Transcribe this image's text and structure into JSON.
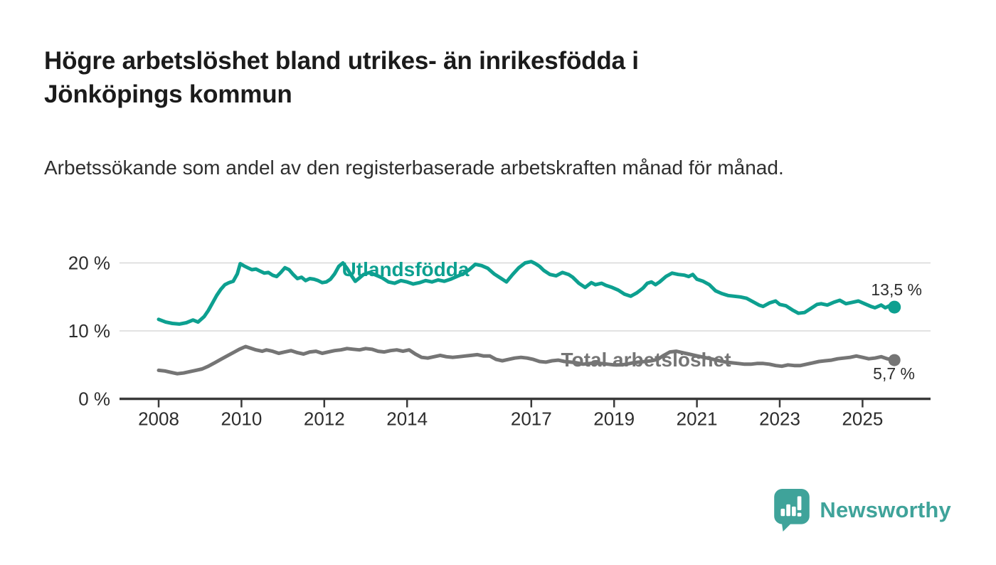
{
  "header": {
    "title": "Högre arbetslöshet bland utrikes- än inrikesfödda i Jönköpings kommun",
    "title_lines": [
      "Högre arbetslöshet bland utrikes- än inrikesfödda i",
      "Jönköpings kommun"
    ],
    "subtitle": "Arbetssökande som andel av den registerbaserade arbetskraften månad för månad."
  },
  "footer": {
    "brand": "Newsworthy",
    "logo_icon": "newsworthy-speech-bubble-bar-chart-icon",
    "brand_color": "#3fa39a"
  },
  "colors": {
    "foreign_born_line": "#0da090",
    "total_line": "#757575",
    "gridline": "#d8d8d8",
    "axis": "#3a3a3a",
    "label_text": "#2d2d2d"
  },
  "chart_data": {
    "type": "line",
    "title": "Högre arbetslöshet bland utrikes- än inrikesfödda i Jönköpings kommun",
    "subtitle": "Arbetssökande som andel av den registerbaserade arbetskraften månad för månad.",
    "xlabel": "",
    "ylabel": "",
    "unit": "%",
    "grid": "horizontal",
    "x_axis": {
      "ticks": [
        2008,
        2010,
        2012,
        2014,
        2017,
        2019,
        2021,
        2023,
        2025
      ]
    },
    "y_axis": {
      "ticks": [
        0,
        10,
        20
      ],
      "tick_labels": [
        "0 %",
        "10 %",
        "20 %"
      ],
      "range": [
        0,
        21
      ]
    },
    "series": [
      {
        "name": "Utlandsfödda",
        "color": "#0da090",
        "end_value": 13.5,
        "end_label": "13,5 %",
        "points": [
          [
            2008.0,
            11.7
          ],
          [
            2008.17,
            11.3
          ],
          [
            2008.33,
            11.1
          ],
          [
            2008.5,
            11.0
          ],
          [
            2008.67,
            11.2
          ],
          [
            2008.83,
            11.6
          ],
          [
            2008.95,
            11.3
          ],
          [
            2009.1,
            12.1
          ],
          [
            2009.2,
            13.0
          ],
          [
            2009.3,
            14.1
          ],
          [
            2009.4,
            15.2
          ],
          [
            2009.5,
            16.1
          ],
          [
            2009.6,
            16.8
          ],
          [
            2009.7,
            17.1
          ],
          [
            2009.8,
            17.3
          ],
          [
            2009.9,
            18.4
          ],
          [
            2009.97,
            19.9
          ],
          [
            2010.05,
            19.6
          ],
          [
            2010.15,
            19.3
          ],
          [
            2010.25,
            19.0
          ],
          [
            2010.35,
            19.1
          ],
          [
            2010.45,
            18.8
          ],
          [
            2010.55,
            18.5
          ],
          [
            2010.65,
            18.6
          ],
          [
            2010.75,
            18.2
          ],
          [
            2010.85,
            18.0
          ],
          [
            2010.95,
            18.6
          ],
          [
            2011.05,
            19.3
          ],
          [
            2011.15,
            19.0
          ],
          [
            2011.25,
            18.3
          ],
          [
            2011.35,
            17.7
          ],
          [
            2011.45,
            17.9
          ],
          [
            2011.55,
            17.4
          ],
          [
            2011.65,
            17.7
          ],
          [
            2011.75,
            17.6
          ],
          [
            2011.85,
            17.4
          ],
          [
            2011.95,
            17.1
          ],
          [
            2012.05,
            17.2
          ],
          [
            2012.15,
            17.6
          ],
          [
            2012.25,
            18.4
          ],
          [
            2012.35,
            19.5
          ],
          [
            2012.45,
            20.0
          ],
          [
            2012.55,
            19.2
          ],
          [
            2012.65,
            18.2
          ],
          [
            2012.75,
            17.3
          ],
          [
            2012.85,
            17.8
          ],
          [
            2012.95,
            18.3
          ],
          [
            2013.1,
            18.6
          ],
          [
            2013.25,
            18.2
          ],
          [
            2013.4,
            17.8
          ],
          [
            2013.55,
            17.2
          ],
          [
            2013.7,
            17.0
          ],
          [
            2013.85,
            17.4
          ],
          [
            2014.0,
            17.2
          ],
          [
            2014.15,
            16.9
          ],
          [
            2014.3,
            17.1
          ],
          [
            2014.45,
            17.4
          ],
          [
            2014.6,
            17.2
          ],
          [
            2014.75,
            17.5
          ],
          [
            2014.9,
            17.3
          ],
          [
            2015.05,
            17.6
          ],
          [
            2015.2,
            18.0
          ],
          [
            2015.35,
            18.4
          ],
          [
            2015.5,
            19.0
          ],
          [
            2015.65,
            19.8
          ],
          [
            2015.8,
            19.6
          ],
          [
            2015.95,
            19.2
          ],
          [
            2016.1,
            18.4
          ],
          [
            2016.25,
            17.8
          ],
          [
            2016.4,
            17.2
          ],
          [
            2016.55,
            18.3
          ],
          [
            2016.7,
            19.3
          ],
          [
            2016.85,
            20.0
          ],
          [
            2017.0,
            20.2
          ],
          [
            2017.1,
            19.9
          ],
          [
            2017.2,
            19.5
          ],
          [
            2017.3,
            18.9
          ],
          [
            2017.45,
            18.3
          ],
          [
            2017.6,
            18.1
          ],
          [
            2017.75,
            18.6
          ],
          [
            2017.9,
            18.3
          ],
          [
            2018.0,
            17.9
          ],
          [
            2018.15,
            17.0
          ],
          [
            2018.3,
            16.4
          ],
          [
            2018.45,
            17.1
          ],
          [
            2018.55,
            16.8
          ],
          [
            2018.7,
            17.0
          ],
          [
            2018.8,
            16.7
          ],
          [
            2018.95,
            16.4
          ],
          [
            2019.1,
            16.0
          ],
          [
            2019.25,
            15.4
          ],
          [
            2019.4,
            15.1
          ],
          [
            2019.55,
            15.6
          ],
          [
            2019.7,
            16.3
          ],
          [
            2019.8,
            17.0
          ],
          [
            2019.9,
            17.2
          ],
          [
            2020.0,
            16.8
          ],
          [
            2020.1,
            17.2
          ],
          [
            2020.25,
            18.0
          ],
          [
            2020.4,
            18.5
          ],
          [
            2020.55,
            18.3
          ],
          [
            2020.7,
            18.2
          ],
          [
            2020.8,
            18.0
          ],
          [
            2020.9,
            18.3
          ],
          [
            2021.0,
            17.6
          ],
          [
            2021.15,
            17.3
          ],
          [
            2021.3,
            16.8
          ],
          [
            2021.45,
            15.9
          ],
          [
            2021.6,
            15.5
          ],
          [
            2021.75,
            15.2
          ],
          [
            2021.9,
            15.1
          ],
          [
            2022.05,
            15.0
          ],
          [
            2022.2,
            14.8
          ],
          [
            2022.35,
            14.3
          ],
          [
            2022.5,
            13.8
          ],
          [
            2022.6,
            13.6
          ],
          [
            2022.75,
            14.1
          ],
          [
            2022.9,
            14.4
          ],
          [
            2023.0,
            13.9
          ],
          [
            2023.15,
            13.7
          ],
          [
            2023.3,
            13.1
          ],
          [
            2023.45,
            12.6
          ],
          [
            2023.6,
            12.7
          ],
          [
            2023.75,
            13.3
          ],
          [
            2023.9,
            13.9
          ],
          [
            2024.0,
            14.0
          ],
          [
            2024.15,
            13.8
          ],
          [
            2024.3,
            14.2
          ],
          [
            2024.45,
            14.5
          ],
          [
            2024.6,
            14.0
          ],
          [
            2024.75,
            14.2
          ],
          [
            2024.9,
            14.4
          ],
          [
            2025.05,
            14.0
          ],
          [
            2025.2,
            13.6
          ],
          [
            2025.3,
            13.4
          ],
          [
            2025.45,
            13.8
          ],
          [
            2025.55,
            13.4
          ],
          [
            2025.65,
            13.7
          ],
          [
            2025.77,
            13.5
          ]
        ]
      },
      {
        "name": "Total arbetslöshet",
        "color": "#757575",
        "end_value": 5.7,
        "end_label": "5,7 %",
        "points": [
          [
            2008.0,
            4.2
          ],
          [
            2008.15,
            4.1
          ],
          [
            2008.3,
            3.9
          ],
          [
            2008.45,
            3.7
          ],
          [
            2008.6,
            3.8
          ],
          [
            2008.75,
            4.0
          ],
          [
            2008.9,
            4.2
          ],
          [
            2009.05,
            4.4
          ],
          [
            2009.2,
            4.8
          ],
          [
            2009.35,
            5.3
          ],
          [
            2009.5,
            5.8
          ],
          [
            2009.65,
            6.3
          ],
          [
            2009.8,
            6.8
          ],
          [
            2009.95,
            7.3
          ],
          [
            2010.1,
            7.7
          ],
          [
            2010.2,
            7.5
          ],
          [
            2010.35,
            7.2
          ],
          [
            2010.5,
            7.0
          ],
          [
            2010.6,
            7.2
          ],
          [
            2010.75,
            7.0
          ],
          [
            2010.9,
            6.7
          ],
          [
            2011.05,
            6.9
          ],
          [
            2011.2,
            7.1
          ],
          [
            2011.35,
            6.8
          ],
          [
            2011.5,
            6.6
          ],
          [
            2011.65,
            6.9
          ],
          [
            2011.8,
            7.0
          ],
          [
            2011.95,
            6.7
          ],
          [
            2012.1,
            6.9
          ],
          [
            2012.25,
            7.1
          ],
          [
            2012.4,
            7.2
          ],
          [
            2012.55,
            7.4
          ],
          [
            2012.7,
            7.3
          ],
          [
            2012.85,
            7.2
          ],
          [
            2013.0,
            7.4
          ],
          [
            2013.15,
            7.3
          ],
          [
            2013.3,
            7.0
          ],
          [
            2013.45,
            6.9
          ],
          [
            2013.6,
            7.1
          ],
          [
            2013.75,
            7.2
          ],
          [
            2013.9,
            7.0
          ],
          [
            2014.05,
            7.2
          ],
          [
            2014.2,
            6.6
          ],
          [
            2014.35,
            6.1
          ],
          [
            2014.5,
            6.0
          ],
          [
            2014.65,
            6.2
          ],
          [
            2014.8,
            6.4
          ],
          [
            2014.95,
            6.2
          ],
          [
            2015.1,
            6.1
          ],
          [
            2015.25,
            6.2
          ],
          [
            2015.4,
            6.3
          ],
          [
            2015.55,
            6.4
          ],
          [
            2015.7,
            6.5
          ],
          [
            2015.85,
            6.3
          ],
          [
            2016.0,
            6.3
          ],
          [
            2016.15,
            5.8
          ],
          [
            2016.3,
            5.6
          ],
          [
            2016.45,
            5.8
          ],
          [
            2016.6,
            6.0
          ],
          [
            2016.75,
            6.1
          ],
          [
            2016.9,
            6.0
          ],
          [
            2017.05,
            5.8
          ],
          [
            2017.2,
            5.5
          ],
          [
            2017.35,
            5.4
          ],
          [
            2017.5,
            5.6
          ],
          [
            2017.65,
            5.7
          ],
          [
            2017.8,
            5.5
          ],
          [
            2017.95,
            5.4
          ],
          [
            2018.1,
            5.3
          ],
          [
            2018.25,
            5.1
          ],
          [
            2018.4,
            5.2
          ],
          [
            2018.55,
            5.3
          ],
          [
            2018.7,
            5.2
          ],
          [
            2018.85,
            5.1
          ],
          [
            2019.0,
            5.0
          ],
          [
            2019.15,
            5.0
          ],
          [
            2019.3,
            5.1
          ],
          [
            2019.45,
            5.3
          ],
          [
            2019.6,
            5.4
          ],
          [
            2019.75,
            5.5
          ],
          [
            2019.9,
            5.6
          ],
          [
            2020.05,
            5.8
          ],
          [
            2020.2,
            6.4
          ],
          [
            2020.35,
            6.9
          ],
          [
            2020.5,
            7.0
          ],
          [
            2020.65,
            6.8
          ],
          [
            2020.8,
            6.6
          ],
          [
            2020.95,
            6.4
          ],
          [
            2021.1,
            6.2
          ],
          [
            2021.25,
            6.0
          ],
          [
            2021.4,
            5.8
          ],
          [
            2021.55,
            5.6
          ],
          [
            2021.7,
            5.4
          ],
          [
            2021.85,
            5.3
          ],
          [
            2022.0,
            5.2
          ],
          [
            2022.15,
            5.1
          ],
          [
            2022.3,
            5.1
          ],
          [
            2022.45,
            5.2
          ],
          [
            2022.6,
            5.2
          ],
          [
            2022.75,
            5.1
          ],
          [
            2022.9,
            4.9
          ],
          [
            2023.05,
            4.8
          ],
          [
            2023.2,
            5.0
          ],
          [
            2023.35,
            4.9
          ],
          [
            2023.5,
            4.9
          ],
          [
            2023.65,
            5.1
          ],
          [
            2023.8,
            5.3
          ],
          [
            2023.95,
            5.5
          ],
          [
            2024.1,
            5.6
          ],
          [
            2024.25,
            5.7
          ],
          [
            2024.4,
            5.9
          ],
          [
            2024.55,
            6.0
          ],
          [
            2024.7,
            6.1
          ],
          [
            2024.85,
            6.3
          ],
          [
            2025.0,
            6.1
          ],
          [
            2025.15,
            5.9
          ],
          [
            2025.3,
            6.0
          ],
          [
            2025.45,
            6.2
          ],
          [
            2025.6,
            5.9
          ],
          [
            2025.77,
            5.7
          ]
        ]
      }
    ]
  }
}
